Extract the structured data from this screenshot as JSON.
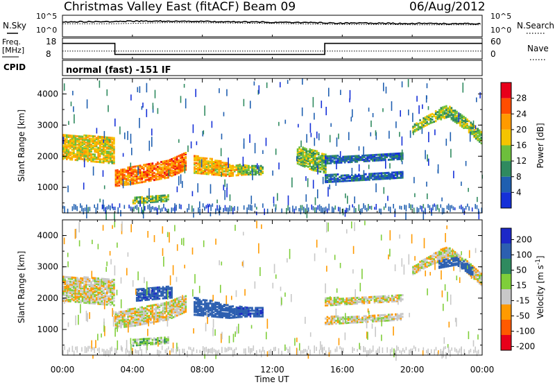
{
  "header": {
    "station": "Christmas Valley East (fitACF)",
    "beam": "Beam 09",
    "date": "06/Aug/2012"
  },
  "status_panels": {
    "nsky_label": "N.Sky",
    "nsky_ticks": [
      "10^5",
      "10^0"
    ],
    "nsearch_label": "N.Search",
    "nsearch_ticks": [
      "10^5",
      "10^0"
    ],
    "freq_label_1": "Freq.",
    "freq_label_2": "[MHz]",
    "freq_ticks": [
      "18",
      "8"
    ],
    "nave_label": "Nave",
    "nave_ticks": [
      "60",
      "0"
    ],
    "cpid_label": "CPID",
    "cpid_text": "normal (fast) -151 IF"
  },
  "power_panel": {
    "ylabel": "Slant Range [km]",
    "yticks": [
      "4000",
      "3000",
      "2000",
      "1000"
    ],
    "colorbar_label": "Power [dB]",
    "colorbar_ticks": [
      "28",
      "24",
      "20",
      "16",
      "12",
      "8",
      "4"
    ],
    "colors": [
      "#e8001a",
      "#ff4d00",
      "#ff9a00",
      "#f4c400",
      "#6dbf3c",
      "#2f8a5f",
      "#1f5fb0",
      "#1530d8"
    ]
  },
  "velocity_panel": {
    "ylabel": "Slant Range [km]",
    "yticks": [
      "4000",
      "3000",
      "2000",
      "1000"
    ],
    "colorbar_label": "Velocity [m s",
    "colorbar_label_sup": "-1",
    "colorbar_ticks": [
      "200",
      "100",
      "50",
      "15",
      "-15",
      "-50",
      "-100",
      "-200"
    ],
    "colors": [
      "#1d28c8",
      "#2c5fb0",
      "#2f8a5f",
      "#7fce3a",
      "#c8c8c8",
      "#ff9a00",
      "#ff5a00",
      "#e8001a"
    ]
  },
  "xaxis": {
    "label": "Time UT",
    "ticks": [
      "00:00",
      "04:00",
      "08:00",
      "12:00",
      "16:00",
      "20:00",
      "00:00"
    ]
  },
  "chart_data": [
    {
      "type": "line",
      "name": "status-sky-search",
      "x_range": [
        0,
        24
      ],
      "comment_values": "log10 counts",
      "series": [
        {
          "name": "N.Sky",
          "x": [
            0,
            1,
            2,
            3,
            4,
            5,
            6,
            7,
            8,
            9,
            10,
            11,
            12,
            13,
            14,
            15,
            16,
            17,
            18,
            19,
            20,
            21,
            22,
            23,
            24
          ],
          "y": [
            3.8,
            3.9,
            3.9,
            4.0,
            4.1,
            4.1,
            4.1,
            4.0,
            4.0,
            3.9,
            3.9,
            3.8,
            3.7,
            3.7,
            3.6,
            3.5,
            3.4,
            3.4,
            3.4,
            3.3,
            3.3,
            3.3,
            3.2,
            3.2,
            3.2
          ]
        },
        {
          "name": "N.Search",
          "x": [
            0,
            3,
            6,
            9,
            12,
            15,
            18,
            21,
            24
          ],
          "y": [
            3.2,
            3.2,
            3.6,
            3.5,
            3.3,
            3.0,
            2.9,
            2.8,
            2.8
          ]
        }
      ]
    },
    {
      "type": "line",
      "name": "status-freq-nave",
      "x_range": [
        0,
        24
      ],
      "series": [
        {
          "name": "Freq.",
          "x": [
            0,
            3,
            3,
            15,
            15,
            24
          ],
          "y": [
            16.8,
            16.8,
            9.6,
            9.6,
            16.8,
            16.8
          ]
        },
        {
          "name": "Nave",
          "x": [
            0,
            24
          ],
          "y": [
            23,
            23
          ]
        }
      ]
    },
    {
      "type": "heatmap",
      "name": "power",
      "title": "",
      "xlabel": "Time UT",
      "ylabel": "Slant Range [km]",
      "xlim": [
        0,
        24
      ],
      "ylim": [
        180,
        4500
      ],
      "zlabel": "Power [dB]",
      "zlim": [
        0,
        32
      ],
      "features": [
        {
          "x": [
            0,
            1,
            2,
            3
          ],
          "y_low": [
            1950,
            1900,
            1850,
            1800
          ],
          "y_high": [
            2750,
            2700,
            2700,
            2650
          ],
          "z": 18
        },
        {
          "x": [
            3,
            4,
            5,
            6,
            7
          ],
          "y_low": [
            1080,
            1150,
            1250,
            1350,
            1600
          ],
          "y_high": [
            1600,
            1700,
            1800,
            1900,
            2150
          ],
          "z": 24
        },
        {
          "x": [
            4,
            5,
            6
          ],
          "y_low": [
            520,
            560,
            600
          ],
          "y_high": [
            700,
            780,
            820
          ],
          "z": 14
        },
        {
          "x": [
            7.5,
            8.5,
            9.5,
            10.5
          ],
          "y_low": [
            1500,
            1450,
            1400,
            1450
          ],
          "y_high": [
            2050,
            1950,
            1800,
            1700
          ],
          "z": 20
        },
        {
          "x": [
            10,
            10.6,
            11.4
          ],
          "y_low": [
            1500,
            1450,
            1450
          ],
          "y_high": [
            1780,
            1750,
            1720
          ],
          "z": 14
        },
        {
          "x": [
            13.4,
            14.2,
            15
          ],
          "y_low": [
            1800,
            1600,
            1500
          ],
          "y_high": [
            2350,
            2250,
            2100
          ],
          "z": 14
        },
        {
          "x": [
            15,
            16.5,
            18,
            19.5
          ],
          "y_low": [
            1800,
            1850,
            1900,
            1950
          ],
          "y_high": [
            2050,
            2050,
            2100,
            2150
          ],
          "z": 6
        },
        {
          "x": [
            15,
            16.5,
            18,
            19.5
          ],
          "y_low": [
            1200,
            1250,
            1300,
            1350
          ],
          "y_high": [
            1450,
            1450,
            1500,
            1550
          ],
          "z": 6
        },
        {
          "x": [
            20,
            21,
            22,
            23,
            24
          ],
          "y_low": [
            2800,
            3100,
            3300,
            2900,
            2400
          ],
          "y_high": [
            3050,
            3400,
            3700,
            3300,
            2800
          ],
          "z": 14
        }
      ]
    },
    {
      "type": "heatmap",
      "name": "velocity",
      "title": "",
      "xlabel": "Time UT",
      "ylabel": "Slant Range [km]",
      "xlim": [
        0,
        24
      ],
      "ylim": [
        180,
        4500
      ],
      "zlabel": "Velocity [m s-1]",
      "zlim": [
        -250,
        250
      ],
      "features": [
        {
          "x": [
            0,
            1,
            2,
            3
          ],
          "y_low": [
            1950,
            1900,
            1850,
            1800
          ],
          "y_high": [
            2750,
            2700,
            2700,
            2650
          ],
          "z": 0
        },
        {
          "x": [
            3,
            4,
            5,
            6,
            7
          ],
          "y_low": [
            1080,
            1150,
            1250,
            1350,
            1600
          ],
          "y_high": [
            1600,
            1700,
            1800,
            1900,
            2150
          ],
          "z": 0
        },
        {
          "x": [
            4.2,
            5.2,
            6.2
          ],
          "y_low": [
            1950,
            2000,
            2050
          ],
          "y_high": [
            2350,
            2400,
            2400
          ],
          "z": 180
        },
        {
          "x": [
            4,
            5,
            6
          ],
          "y_low": [
            520,
            560,
            600
          ],
          "y_high": [
            700,
            780,
            820
          ],
          "z": 30
        },
        {
          "x": [
            7.5,
            8.5,
            9.5,
            10.5
          ],
          "y_low": [
            1500,
            1450,
            1400,
            1450
          ],
          "y_high": [
            2050,
            1950,
            1800,
            1700
          ],
          "z": 160
        },
        {
          "x": [
            10,
            10.6,
            11.4
          ],
          "y_low": [
            1500,
            1450,
            1450
          ],
          "y_high": [
            1780,
            1750,
            1720
          ],
          "z": 180
        },
        {
          "x": [
            15,
            16.5,
            18,
            19.5
          ],
          "y_low": [
            1800,
            1850,
            1900,
            1950
          ],
          "y_high": [
            2050,
            2050,
            2100,
            2150
          ],
          "z": 0
        },
        {
          "x": [
            15,
            16.5,
            18,
            19.5
          ],
          "y_low": [
            1200,
            1250,
            1300,
            1350
          ],
          "y_high": [
            1450,
            1450,
            1500,
            1550
          ],
          "z": 0
        },
        {
          "x": [
            20,
            21,
            22,
            23,
            24
          ],
          "y_low": [
            2800,
            3100,
            3300,
            2900,
            2400
          ],
          "y_high": [
            3050,
            3400,
            3700,
            3300,
            2800
          ],
          "z": 0
        },
        {
          "x": [
            21.5,
            22.5,
            23.5
          ],
          "y_low": [
            3000,
            3100,
            2700
          ],
          "y_high": [
            3250,
            3350,
            3000
          ],
          "z": 170
        }
      ]
    }
  ]
}
